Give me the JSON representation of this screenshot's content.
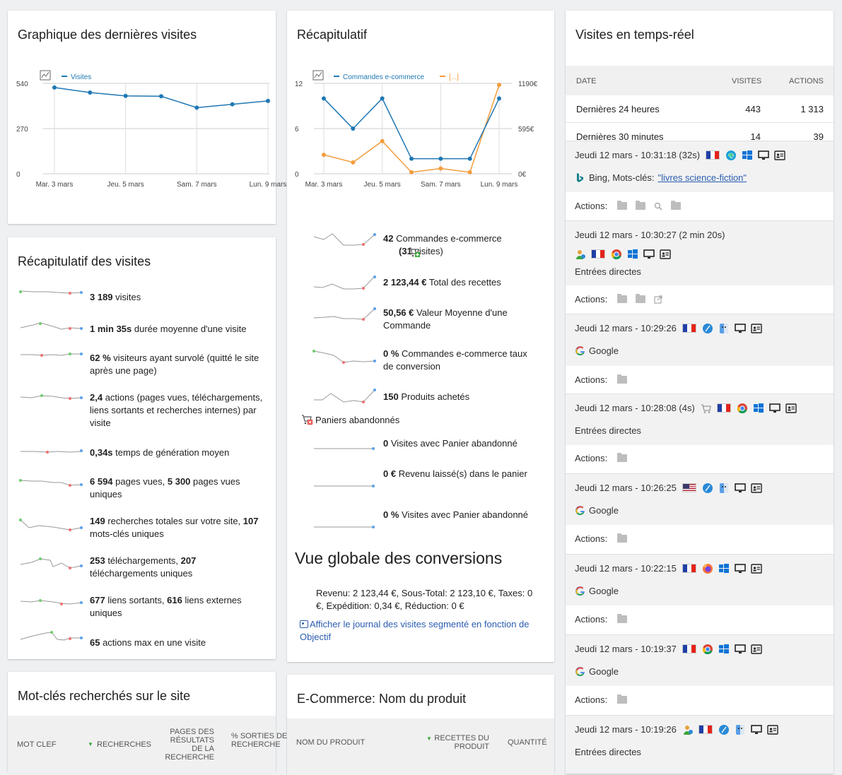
{
  "graph_visits": {
    "title": "Graphique des dernières visites",
    "legend": "Visites",
    "y_ticks": [
      "540",
      "270",
      "0"
    ],
    "x_ticks": [
      "Mar. 3 mars",
      "Jeu. 5 mars",
      "Sam. 7 mars",
      "Lun. 9 mars"
    ]
  },
  "recap": {
    "title": "Récapitulatif",
    "legend_1": "Commandes e-commerce",
    "legend_2": "[...]",
    "y_left_ticks": [
      "12",
      "6",
      "0"
    ],
    "y_right_ticks": [
      "1190€",
      "595€",
      "0€"
    ],
    "x_ticks": [
      "Mar. 3 mars",
      "Jeu. 5 mars",
      "Sam. 7 mars",
      "Lun. 9 mars"
    ],
    "row1_bold": "42",
    "row1_text": " Commandes e-commerce",
    "row1_sub_bold": "(31",
    "row1_sub_text": " visites)",
    "row2_bold": "2 123,44 €",
    "row2_text": " Total des recettes",
    "row3_bold": "50,56 €",
    "row3_text": " Valeur Moyenne d'une Commande",
    "row4_bold": "0 %",
    "row4_text": " Commandes e-commerce taux de conversion",
    "row5_bold": "150",
    "row5_text": " Produits achetés",
    "abandoned_title": "Paniers abandonnés",
    "ab1_bold": "0",
    "ab1_text": " Visites avec Panier abandonné",
    "ab2_bold": "0 €",
    "ab2_text": " Revenu laissé(s) dans le panier",
    "ab3_bold": "0 %",
    "ab3_text": " Visites avec Panier abandonné",
    "conv_title": "Vue globale des conversions",
    "conv_text": "Revenu: 2 123,44 €, Sous-Total: 2 123,10 €, Taxes: 0 €, Expédition: 0,34 €, Réduction: 0 €",
    "conv_link": "Afficher le journal des visites segmenté en fonction de Objectif"
  },
  "visits_summary": {
    "title": "Récapitulatif des visites",
    "r1b": "3 189",
    "r1t": " visites",
    "r2b": "1 min 35s",
    "r2t": " durée moyenne d'une visite",
    "r3b": "62 %",
    "r3t": " visiteurs ayant survolé (quitté le site après une page)",
    "r4b": "2,4",
    "r4t": " actions (pages vues, téléchargements, liens sortants et recherches internes) par visite",
    "r5b": "0,34s",
    "r5t": " temps de génération moyen",
    "r6b": "6 594",
    "r6t": " pages vues, ",
    "r6b2": "5 300",
    "r6t2": " pages vues uniques",
    "r7b": "149",
    "r7t": " recherches totales sur votre site, ",
    "r7b2": "107",
    "r7t2": " mots-clés uniques",
    "r8b": "253",
    "r8t": " téléchargements, ",
    "r8b2": "207",
    "r8t2": " téléchargements uniques",
    "r9b": "677",
    "r9t": " liens sortants, ",
    "r9b2": "616",
    "r9t2": " liens externes uniques",
    "r10b": "65",
    "r10t": " actions max en une visite"
  },
  "keywords": {
    "title": "Mot-clés recherchés sur le site",
    "col1": "MOT CLEF",
    "col2": "RECHERCHES",
    "col3": "PAGES DES RÉSULTATS DE LA RECHERCHE",
    "col4": "% SORTIES DE RECHERCHE"
  },
  "product": {
    "title": "E-Commerce: Nom du produit",
    "col1": "NOM DU PRODUIT",
    "col2": "RECETTES DU PRODUIT",
    "col3": "QUANTITÉ"
  },
  "realtime": {
    "title": "Visites en temps-réel",
    "h_date": "DATE",
    "h_visits": "VISITES",
    "h_actions": "ACTIONS",
    "row1_label": "Dernières 24 heures",
    "row1_visits": "443",
    "row1_actions": "1 313",
    "row2_label": "Dernières 30 minutes",
    "row2_visits": "14",
    "row2_actions": "39",
    "actions_label": "Actions:",
    "v1_time": "Jeudi 12 mars - 10:31:18 (32s)",
    "v1_ref": "Bing, Mots-clés:",
    "v1_kw": "\"livres science-fiction\"",
    "v2_time": "Jeudi 12 mars - 10:30:27 (2 min 20s)",
    "v2_ref": "Entrées directes",
    "v3_time": "Jeudi 12 mars - 10:29:26",
    "v3_ref": "Google",
    "v4_time": "Jeudi 12 mars - 10:28:08 (4s)",
    "v4_ref": "Entrées directes",
    "v5_time": "Jeudi 12 mars - 10:26:25",
    "v5_ref": "Google",
    "v6_time": "Jeudi 12 mars - 10:22:15",
    "v6_ref": "Google",
    "v7_time": "Jeudi 12 mars - 10:19:37",
    "v7_ref": "Google",
    "v8_time": "Jeudi 12 mars - 10:19:26",
    "v8_ref": "Entrées directes"
  },
  "chart_data": [
    {
      "type": "line",
      "x": [
        "Mar. 3 mars",
        "Mer. 4 mars",
        "Jeu. 5 mars",
        "Ven. 6 mars",
        "Sam. 7 mars",
        "Dim. 8 mars",
        "Lun. 9 mars"
      ],
      "series": [
        {
          "name": "Visites",
          "values": [
            515,
            485,
            465,
            463,
            395,
            415,
            435
          ]
        }
      ],
      "ylim": [
        0,
        540
      ],
      "color": "#1f77b4"
    },
    {
      "type": "line",
      "x": [
        "Mar. 3 mars",
        "Mer. 4 mars",
        "Jeu. 5 mars",
        "Ven. 6 mars",
        "Sam. 7 mars",
        "Dim. 8 mars",
        "Lun. 9 mars"
      ],
      "series": [
        {
          "name": "Commandes e-commerce",
          "axis": "left",
          "values": [
            10,
            6,
            10,
            2,
            2,
            2,
            10
          ]
        },
        {
          "name": "[...]",
          "axis": "right",
          "values": [
            250,
            150,
            430,
            20,
            70,
            20,
            1170
          ]
        }
      ],
      "ylim_left": [
        0,
        12
      ],
      "ylim_right": [
        0,
        1190
      ],
      "colors": [
        "#1f77b4",
        "#f39c3c"
      ]
    }
  ]
}
